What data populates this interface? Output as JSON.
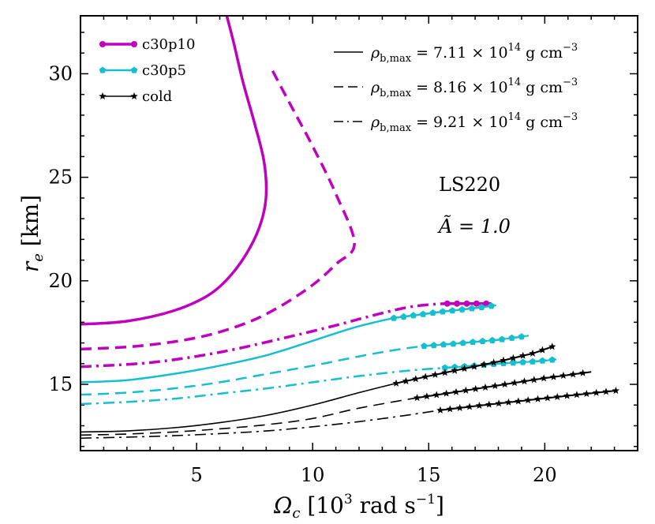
{
  "chart_data": {
    "type": "line",
    "title": "",
    "xlabel": "Ω_c [10³ rad s⁻¹]",
    "xlabel_parts": {
      "sym": "Ω",
      "sub": "c",
      "pre": " [10",
      "sup1": "3",
      "mid": " rad s",
      "sup2": "−1",
      "post": "]"
    },
    "ylabel": "r_e [km]",
    "ylabel_parts": {
      "sym": "r",
      "sub": "e",
      "post": " [km]"
    },
    "xlim": [
      0,
      24
    ],
    "ylim": [
      11.8,
      32.8
    ],
    "xticks": [
      5,
      10,
      15,
      20
    ],
    "yticks": [
      15,
      20,
      25,
      30
    ],
    "annotations": [
      "LS220",
      "Ã = 1.0"
    ],
    "legend_models": [
      {
        "label": "c30p10",
        "color": "#BF00BF"
      },
      {
        "label": "c30p5",
        "color": "#17BECF"
      },
      {
        "label": "cold",
        "color": "#000000"
      }
    ],
    "legend_densities": [
      {
        "style": "solid",
        "value": "7.11",
        "exp": "14"
      },
      {
        "style": "dashed",
        "value": "8.16",
        "exp": "14"
      },
      {
        "style": "dashdot",
        "value": "9.21",
        "exp": "14"
      }
    ],
    "density_label": {
      "sym": "ρ",
      "sub": "b,max",
      "eq": " = ",
      "times": " × 10",
      "unit": " g cm",
      "unit_exp": "−3"
    },
    "series": [
      {
        "name": "c30p10 7.11",
        "color": "#BF00BF",
        "style": "solid",
        "marker_from": null,
        "x": [
          0.0,
          2.0,
          4.0,
          5.5,
          6.5,
          7.3,
          7.8,
          8.0,
          7.9,
          7.5,
          7.0,
          6.6,
          6.3
        ],
        "y": [
          17.9,
          18.05,
          18.55,
          19.3,
          20.3,
          21.6,
          22.9,
          24.2,
          25.8,
          27.6,
          29.6,
          31.5,
          32.8
        ]
      },
      {
        "name": "c30p10 8.16",
        "color": "#BF00BF",
        "style": "dashed",
        "marker_from": null,
        "x": [
          0.0,
          2.5,
          5.0,
          7.0,
          8.5,
          10.0,
          11.0,
          11.8,
          11.0,
          10.0,
          9.0,
          8.2
        ],
        "y": [
          16.7,
          16.85,
          17.25,
          17.9,
          18.7,
          19.8,
          20.8,
          21.8,
          24.2,
          26.5,
          28.6,
          30.3
        ]
      },
      {
        "name": "c30p10 9.21",
        "color": "#BF00BF",
        "style": "dashdot",
        "marker_from": 15.8,
        "x": [
          0.0,
          3.0,
          6.0,
          9.0,
          11.0,
          12.5,
          14.0,
          15.0,
          15.8,
          16.3,
          16.8,
          17.3,
          17.7
        ],
        "y": [
          15.85,
          16.05,
          16.55,
          17.3,
          17.85,
          18.3,
          18.7,
          18.85,
          18.9,
          18.9,
          18.9,
          18.9,
          18.9
        ]
      },
      {
        "name": "c30p5 7.11",
        "color": "#17BECF",
        "style": "solid",
        "marker_from": 13.5,
        "x": [
          0.0,
          2.0,
          4.0,
          6.0,
          8.0,
          10.0,
          11.5,
          12.5,
          13.5,
          14.5,
          15.5,
          16.5,
          17.3,
          17.9
        ],
        "y": [
          15.1,
          15.2,
          15.5,
          15.9,
          16.4,
          17.1,
          17.65,
          17.95,
          18.2,
          18.35,
          18.5,
          18.62,
          18.72,
          18.82
        ]
      },
      {
        "name": "c30p5 8.16",
        "color": "#17BECF",
        "style": "dashed",
        "marker_from": 14.8,
        "x": [
          0.0,
          2.0,
          4.0,
          6.0,
          8.0,
          10.0,
          12.0,
          13.5,
          14.8,
          16.0,
          17.0,
          18.0,
          19.3
        ],
        "y": [
          14.5,
          14.6,
          14.8,
          15.1,
          15.5,
          15.9,
          16.35,
          16.65,
          16.85,
          16.95,
          17.05,
          17.15,
          17.35
        ]
      },
      {
        "name": "c30p5 9.21",
        "color": "#17BECF",
        "style": "dashdot",
        "marker_from": 15.7,
        "x": [
          0.0,
          2.0,
          4.0,
          6.0,
          8.0,
          10.0,
          12.0,
          14.0,
          15.7,
          17.0,
          18.0,
          19.5,
          20.5
        ],
        "y": [
          14.05,
          14.15,
          14.3,
          14.55,
          14.8,
          15.1,
          15.4,
          15.65,
          15.8,
          15.9,
          16.0,
          16.1,
          16.2
        ]
      },
      {
        "name": "cold 7.11",
        "color": "#000000",
        "style": "solid",
        "marker_from": 13.6,
        "x": [
          0.0,
          2.0,
          4.0,
          6.0,
          8.0,
          10.0,
          12.0,
          13.6,
          15.0,
          16.5,
          18.0,
          19.5,
          20.4
        ],
        "y": [
          12.7,
          12.75,
          12.9,
          13.15,
          13.5,
          14.0,
          14.6,
          15.05,
          15.4,
          15.75,
          16.1,
          16.5,
          16.85
        ]
      },
      {
        "name": "cold 8.16",
        "color": "#000000",
        "style": "dashed",
        "marker_from": 14.5,
        "x": [
          0.0,
          2.0,
          4.0,
          6.0,
          8.0,
          10.0,
          12.0,
          14.5,
          16.0,
          18.0,
          20.0,
          22.0
        ],
        "y": [
          12.55,
          12.6,
          12.7,
          12.85,
          13.05,
          13.35,
          13.85,
          14.35,
          14.6,
          14.95,
          15.3,
          15.6
        ]
      },
      {
        "name": "cold 9.21",
        "color": "#000000",
        "style": "dashdot",
        "marker_from": 15.5,
        "x": [
          0.0,
          2.0,
          4.0,
          6.0,
          8.0,
          10.0,
          12.0,
          14.0,
          15.5,
          17.0,
          19.0,
          21.0,
          23.1
        ],
        "y": [
          12.4,
          12.45,
          12.52,
          12.62,
          12.75,
          12.95,
          13.2,
          13.5,
          13.75,
          13.95,
          14.2,
          14.45,
          14.7
        ]
      }
    ]
  }
}
